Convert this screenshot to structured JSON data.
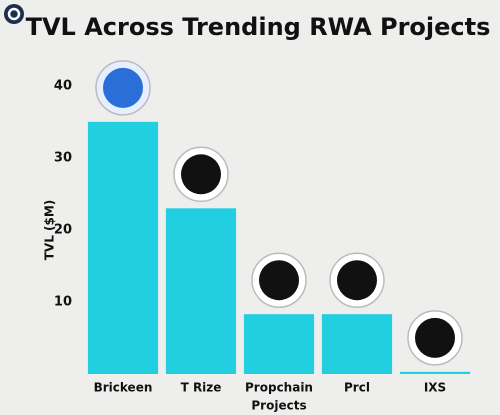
{
  "chart_data": {
    "type": "bar",
    "title": "TVL Across Trending RWA Projects",
    "y_label": "TVL ($M)",
    "x_label": "Projects",
    "categories": [
      "Brickeen",
      "T Rize",
      "Propchain",
      "Prcl",
      "IXS"
    ],
    "values": [
      35,
      23,
      8.3,
      8.3,
      0.3
    ],
    "color": "#22cfe0",
    "ylim": [
      0,
      44
    ],
    "yticks": [
      10,
      20,
      30,
      40
    ],
    "grid": false
  }
}
